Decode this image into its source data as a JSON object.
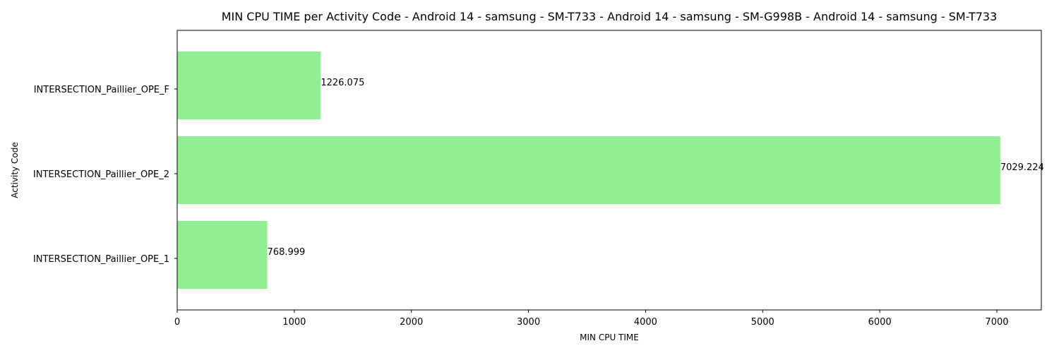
{
  "chart_data": {
    "type": "bar",
    "orientation": "horizontal",
    "title": "MIN CPU TIME per Activity Code - Android 14 - samsung - SM-T733 - Android 14 - samsung - SM-G998B - Android 14 - samsung - SM-T733",
    "xlabel": "MIN CPU TIME",
    "ylabel": "Activity Code",
    "categories": [
      "INTERSECTION_Paillier_OPE_1",
      "INTERSECTION_Paillier_OPE_2",
      "INTERSECTION_Paillier_OPE_F"
    ],
    "values": [
      768.999,
      7029.224,
      1226.075
    ],
    "value_labels": [
      "768.999",
      "7029.224",
      "1226.075"
    ],
    "xlim": [
      0,
      7380
    ],
    "xticks": [
      0,
      1000,
      2000,
      3000,
      4000,
      5000,
      6000,
      7000
    ],
    "bar_color": "#90ee90",
    "grid": false,
    "legend": "none"
  }
}
